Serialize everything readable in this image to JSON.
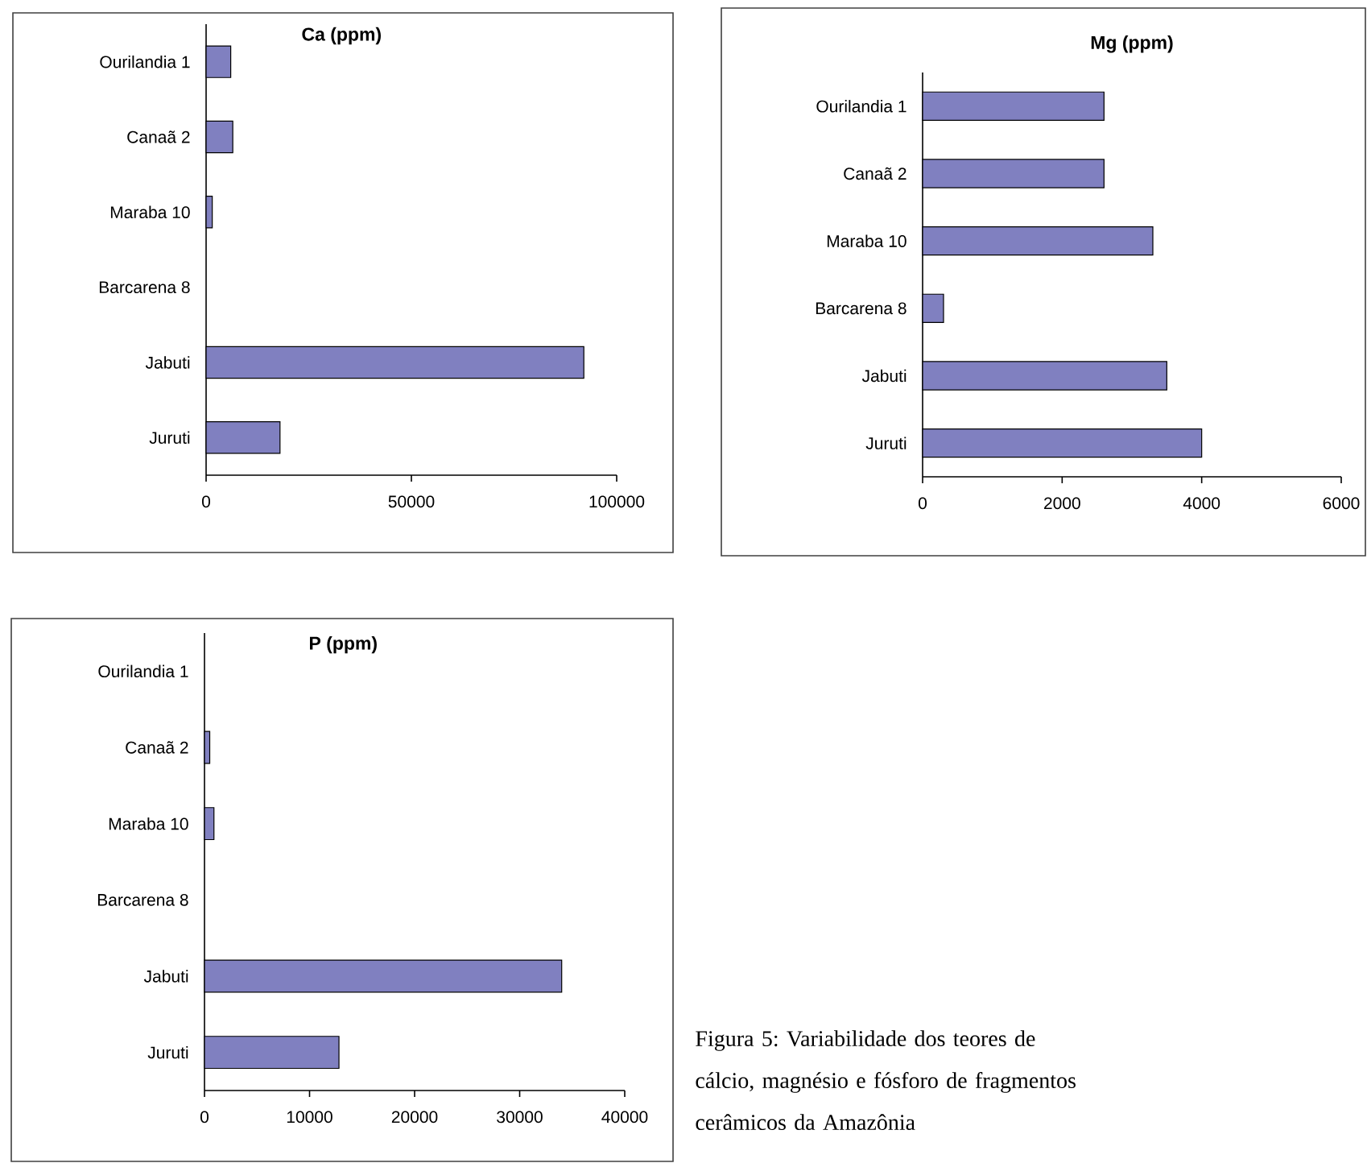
{
  "chart_data": [
    {
      "type": "bar",
      "orientation": "horizontal",
      "title": "Ca (ppm)",
      "categories": [
        "Ourilandia 1",
        "Canaã 2",
        "Maraba 10",
        "Barcarena 8",
        "Jabuti",
        "Juruti"
      ],
      "values": [
        6000,
        6500,
        1500,
        null,
        92000,
        18000
      ],
      "color": "#8080c0",
      "xlim": [
        0,
        100000
      ],
      "xticks": [
        0,
        50000,
        100000
      ]
    },
    {
      "type": "bar",
      "orientation": "horizontal",
      "title": "Mg (ppm)",
      "categories": [
        "Ourilandia 1",
        "Canaã 2",
        "Maraba 10",
        "Barcarena 8",
        "Jabuti",
        "Juruti"
      ],
      "values": [
        2600,
        2600,
        3300,
        300,
        3500,
        4000
      ],
      "color": "#8080c0",
      "xlim": [
        0,
        6000
      ],
      "xticks": [
        0,
        2000,
        4000,
        6000
      ]
    },
    {
      "type": "bar",
      "orientation": "horizontal",
      "title": "P (ppm)",
      "categories": [
        "Ourilandia 1",
        "Canaã 2",
        "Maraba 10",
        "Barcarena 8",
        "Jabuti",
        "Juruti"
      ],
      "values": [
        null,
        500,
        900,
        null,
        34000,
        12800
      ],
      "color": "#8080c0",
      "xlim": [
        0,
        40000
      ],
      "xticks": [
        0,
        10000,
        20000,
        30000,
        40000
      ],
      "annotations": [
        "Figura 5: Variabilidade dos teores de cálcio, magnésio e fósforo de fragmentos cerâmicos da Amazônia"
      ]
    }
  ]
}
